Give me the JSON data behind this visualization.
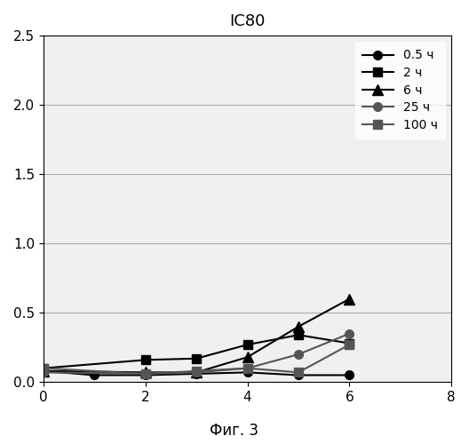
{
  "title": "IC80",
  "xlabel": "",
  "ylabel": "",
  "caption": "Фиг. 3",
  "xlim": [
    0,
    8
  ],
  "ylim": [
    0,
    2.5
  ],
  "xticks": [
    0,
    2,
    4,
    6,
    8
  ],
  "yticks": [
    0.0,
    0.5,
    1.0,
    1.5,
    2.0,
    2.5
  ],
  "series": [
    {
      "label": "0.5 ч",
      "x": [
        0,
        1,
        2,
        3,
        4,
        5,
        6
      ],
      "y": [
        0.08,
        0.05,
        0.05,
        0.06,
        0.07,
        0.05,
        0.05
      ],
      "marker": "o",
      "color": "#000000",
      "markersize": 7,
      "linewidth": 1.5
    },
    {
      "label": "2 ч",
      "x": [
        0,
        2,
        3,
        4,
        5,
        6
      ],
      "y": [
        0.1,
        0.16,
        0.17,
        0.27,
        0.34,
        0.28
      ],
      "marker": "s",
      "color": "#000000",
      "markersize": 7,
      "linewidth": 1.5
    },
    {
      "label": "6 ч",
      "x": [
        0,
        2,
        3,
        4,
        5,
        6
      ],
      "y": [
        0.08,
        0.07,
        0.07,
        0.18,
        0.4,
        0.6
      ],
      "marker": "^",
      "color": "#000000",
      "markersize": 8,
      "linewidth": 1.5
    },
    {
      "label": "25 ч",
      "x": [
        0,
        2,
        3,
        4,
        5,
        6
      ],
      "y": [
        0.07,
        0.06,
        0.07,
        0.1,
        0.2,
        0.35
      ],
      "marker": "o",
      "color": "#555555",
      "markersize": 7,
      "linewidth": 1.5
    },
    {
      "label": "100 ч",
      "x": [
        0,
        2,
        3,
        4,
        5,
        6
      ],
      "y": [
        0.1,
        0.06,
        0.08,
        0.1,
        0.07,
        0.27
      ],
      "marker": "s",
      "color": "#555555",
      "markersize": 7,
      "linewidth": 1.5
    }
  ],
  "background_color": "#ffffff",
  "plot_bg_color": "#f0f0f0",
  "legend_loc": "upper right",
  "title_fontsize": 13,
  "tick_fontsize": 11,
  "legend_fontsize": 10
}
